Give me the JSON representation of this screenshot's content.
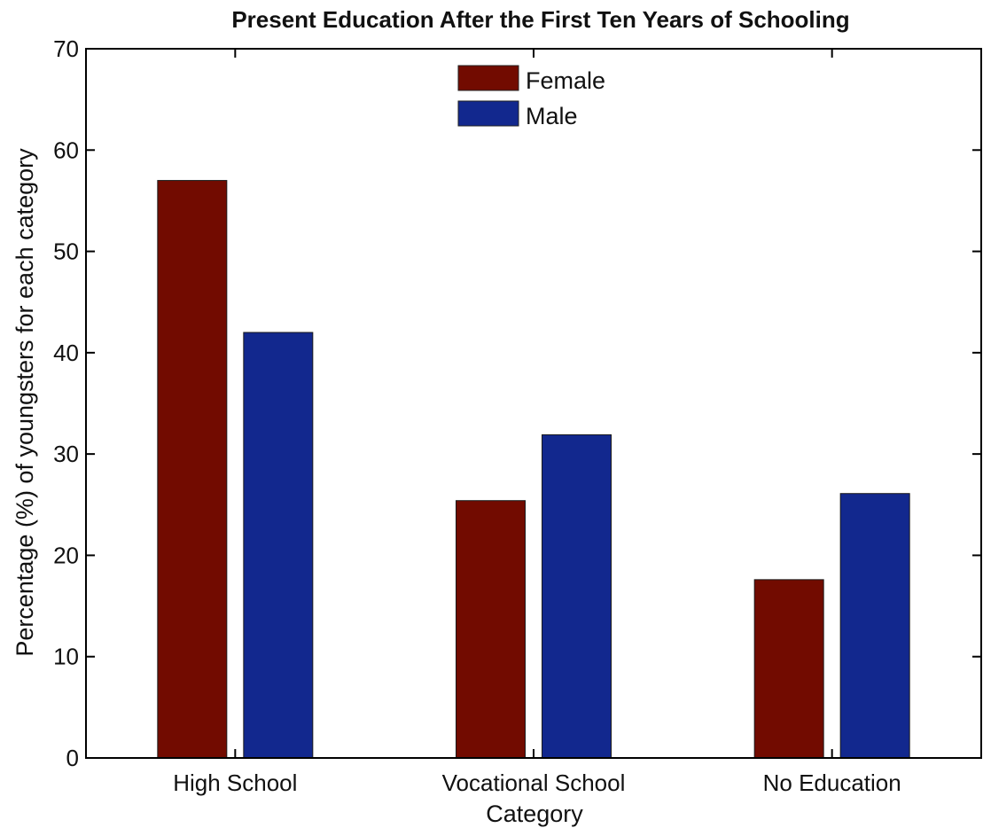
{
  "chart_data": {
    "type": "bar",
    "title": "Present Education After the First Ten Years of Schooling",
    "xlabel": "Category",
    "ylabel": "Percentage (%) of youngsters for each category",
    "categories": [
      "High School",
      "Vocational School",
      "No Education"
    ],
    "series": [
      {
        "name": "Female",
        "color": "#720b00",
        "values": [
          57,
          25.4,
          17.6
        ]
      },
      {
        "name": "Male",
        "color": "#12288e",
        "values": [
          42,
          31.9,
          26.1
        ]
      }
    ],
    "ylim": [
      0,
      70
    ],
    "yticks": [
      0,
      10,
      20,
      30,
      40,
      50,
      60,
      70
    ],
    "grid": false,
    "legend_position": "top-center"
  }
}
